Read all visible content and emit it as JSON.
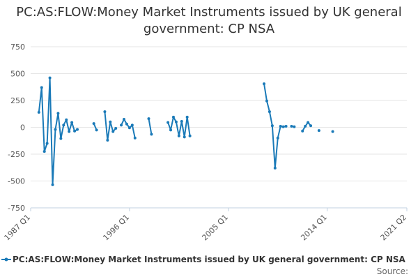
{
  "chart_data": {
    "type": "line",
    "title": "PC:AS:FLOW:Money Market Instruments issued by UK general government: CP NSA",
    "xlabel": "",
    "ylabel": "",
    "ylim": [
      -750,
      750
    ],
    "yticks": [
      750,
      500,
      250,
      0,
      -250,
      -500,
      -750
    ],
    "ytick_labels": [
      "750",
      "500",
      "250",
      "0",
      "-250",
      "-500",
      "-750"
    ],
    "xlim": [
      "1987 Q1",
      "2021 Q2"
    ],
    "xtick_labels": [
      "1987 Q1",
      "1996 Q1",
      "2005 Q1",
      "2014 Q1",
      "2021 Q2"
    ],
    "grid": true,
    "legend_position": "bottom",
    "color": "#1a7ab8",
    "series": [
      {
        "name": "PC:AS:FLOW:Money Market Instruments issued by UK general government: CP NSA",
        "points": [
          [
            "1987 Q4",
            140
          ],
          [
            "1988 Q1",
            370
          ],
          [
            "1988 Q2",
            -225
          ],
          [
            "1988 Q3",
            -150
          ],
          [
            "1988 Q4",
            460
          ],
          [
            "1989 Q1",
            -535
          ],
          [
            "1989 Q2",
            -20
          ],
          [
            "1989 Q3",
            130
          ],
          [
            "1989 Q4",
            -105
          ],
          [
            "1990 Q1",
            20
          ],
          [
            "1990 Q2",
            70
          ],
          [
            "1990 Q3",
            -40
          ],
          [
            "1990 Q4",
            45
          ],
          [
            "1991 Q1",
            -35
          ],
          [
            "1991 Q2",
            -20
          ],
          [
            "1991 Q3",
            null
          ],
          [
            "1992 Q4",
            35
          ],
          [
            "1993 Q1",
            -25
          ],
          [
            "1993 Q2",
            null
          ],
          [
            "1993 Q4",
            145
          ],
          [
            "1994 Q1",
            -120
          ],
          [
            "1994 Q2",
            50
          ],
          [
            "1994 Q3",
            -40
          ],
          [
            "1994 Q4",
            -10
          ],
          [
            "1995 Q1",
            null
          ],
          [
            "1995 Q2",
            20
          ],
          [
            "1995 Q3",
            75
          ],
          [
            "1995 Q4",
            30
          ],
          [
            "1996 Q1",
            -5
          ],
          [
            "1996 Q2",
            20
          ],
          [
            "1996 Q3",
            -100
          ],
          [
            "1996 Q4",
            null
          ],
          [
            "1997 Q4",
            80
          ],
          [
            "1998 Q1",
            -65
          ],
          [
            "1998 Q2",
            null
          ],
          [
            "1999 Q3",
            45
          ],
          [
            "1999 Q4",
            -25
          ],
          [
            "2000 Q1",
            95
          ],
          [
            "2000 Q2",
            50
          ],
          [
            "2000 Q3",
            -80
          ],
          [
            "2000 Q4",
            55
          ],
          [
            "2001 Q1",
            -90
          ],
          [
            "2001 Q2",
            95
          ],
          [
            "2001 Q3",
            -80
          ],
          [
            "2001 Q4",
            null
          ],
          [
            "2008 Q2",
            405
          ],
          [
            "2008 Q3",
            245
          ],
          [
            "2008 Q4",
            145
          ],
          [
            "2009 Q1",
            15
          ],
          [
            "2009 Q2",
            -380
          ],
          [
            "2009 Q3",
            -100
          ],
          [
            "2009 Q4",
            10
          ],
          [
            "2010 Q1",
            5
          ],
          [
            "2010 Q2",
            10
          ],
          [
            "2010 Q3",
            null
          ],
          [
            "2010 Q4",
            10
          ],
          [
            "2011 Q1",
            5
          ],
          [
            "2011 Q2",
            null
          ],
          [
            "2011 Q4",
            -35
          ],
          [
            "2012 Q1",
            10
          ],
          [
            "2012 Q2",
            45
          ],
          [
            "2012 Q3",
            15
          ],
          [
            "2012 Q4",
            null
          ],
          [
            "2013 Q2",
            -30
          ],
          [
            "2013 Q3",
            null
          ],
          [
            "2014 Q3",
            -40
          ]
        ]
      }
    ]
  },
  "footer": {
    "source_label": "Source:"
  }
}
